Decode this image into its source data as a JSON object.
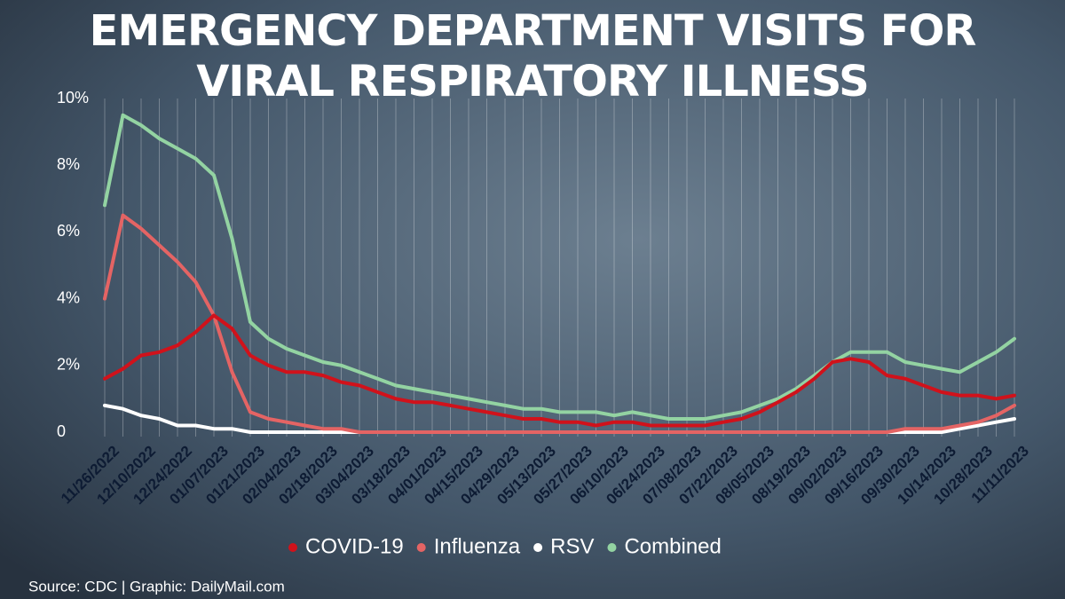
{
  "chart_data": {
    "type": "line",
    "title": "EMERGENCY DEPARTMENT VISITS FOR VIRAL RESPIRATORY ILLNESS",
    "source": "Source: CDC |  Graphic: DailyMail.com",
    "categories": [
      "11/26/2022",
      null,
      "12/10/2022",
      null,
      "12/24/2022",
      null,
      "01/07/2023",
      null,
      "01/21/2023",
      null,
      "02/04/2023",
      null,
      "02/18/2023",
      null,
      "03/04/2023",
      null,
      "03/18/2023",
      null,
      "04/01/2023",
      null,
      "04/15/2023",
      null,
      "04/29/2023",
      null,
      "05/13/2023",
      null,
      "05/27/2023",
      null,
      "06/10/2023",
      null,
      "06/24/2023",
      null,
      "07/08/2023",
      null,
      "07/22/2023",
      null,
      "08/05/2023",
      null,
      "08/19/2023",
      null,
      "09/02/2023",
      null,
      "09/16/2023",
      null,
      "09/30/2023",
      null,
      "10/14/2023",
      null,
      "10/28/2023",
      null,
      "11/11/2023"
    ],
    "series": [
      {
        "name": "COVID-19",
        "color": "#d0121b",
        "values": [
          1.6,
          1.9,
          2.3,
          2.4,
          2.6,
          3.0,
          3.5,
          3.1,
          2.3,
          2.0,
          1.8,
          1.8,
          1.7,
          1.5,
          1.4,
          1.2,
          1.0,
          0.9,
          0.9,
          0.8,
          0.7,
          0.6,
          0.5,
          0.4,
          0.4,
          0.3,
          0.3,
          0.2,
          0.3,
          0.3,
          0.2,
          0.2,
          0.2,
          0.2,
          0.3,
          0.4,
          0.6,
          0.9,
          1.2,
          1.6,
          2.1,
          2.2,
          2.1,
          1.7,
          1.6,
          1.4,
          1.2,
          1.1,
          1.1,
          1.0,
          1.1
        ]
      },
      {
        "name": "Influenza",
        "color": "#e46464",
        "values": [
          4.0,
          6.5,
          6.1,
          5.6,
          5.1,
          4.5,
          3.5,
          1.8,
          0.6,
          0.4,
          0.3,
          0.2,
          0.1,
          0.1,
          0,
          0,
          0,
          0,
          0,
          0,
          0,
          0,
          0,
          0,
          0,
          0,
          0,
          0,
          0,
          0,
          0,
          0,
          0,
          0,
          0,
          0,
          0,
          0,
          0,
          0,
          0,
          0,
          0,
          0,
          0.1,
          0.1,
          0.1,
          0.2,
          0.3,
          0.5,
          0.8
        ]
      },
      {
        "name": "RSV",
        "color": "#ffffff",
        "values": [
          0.8,
          0.7,
          0.5,
          0.4,
          0.2,
          0.2,
          0.1,
          0.1,
          0,
          0,
          0,
          0,
          0,
          0,
          0,
          0,
          0,
          0,
          0,
          0,
          0,
          0,
          0,
          0,
          0,
          0,
          0,
          0,
          0,
          0,
          0,
          0,
          0,
          0,
          0,
          0,
          0,
          0,
          0,
          0,
          0,
          0,
          0,
          0,
          0,
          0,
          0,
          0.1,
          0.2,
          0.3,
          0.4
        ]
      },
      {
        "name": "Combined",
        "color": "#93d3a2",
        "values": [
          6.8,
          9.5,
          9.2,
          8.8,
          8.5,
          8.2,
          7.7,
          5.8,
          3.3,
          2.8,
          2.5,
          2.3,
          2.1,
          2.0,
          1.8,
          1.6,
          1.4,
          1.3,
          1.2,
          1.1,
          1.0,
          0.9,
          0.8,
          0.7,
          0.7,
          0.6,
          0.6,
          0.6,
          0.5,
          0.6,
          0.5,
          0.4,
          0.4,
          0.4,
          0.5,
          0.6,
          0.8,
          1.0,
          1.3,
          1.7,
          2.1,
          2.4,
          2.4,
          2.4,
          2.1,
          2.0,
          1.9,
          1.8,
          2.1,
          2.4,
          2.8
        ]
      }
    ],
    "ylim": [
      0,
      10
    ],
    "yticks": [
      0,
      {
        "value": 2,
        "label": "2%"
      },
      {
        "value": 4,
        "label": "4%"
      },
      {
        "value": 6,
        "label": "6%"
      },
      {
        "value": 8,
        "label": "8%"
      },
      {
        "value": 10,
        "label": "10%"
      }
    ],
    "grid": "x"
  }
}
